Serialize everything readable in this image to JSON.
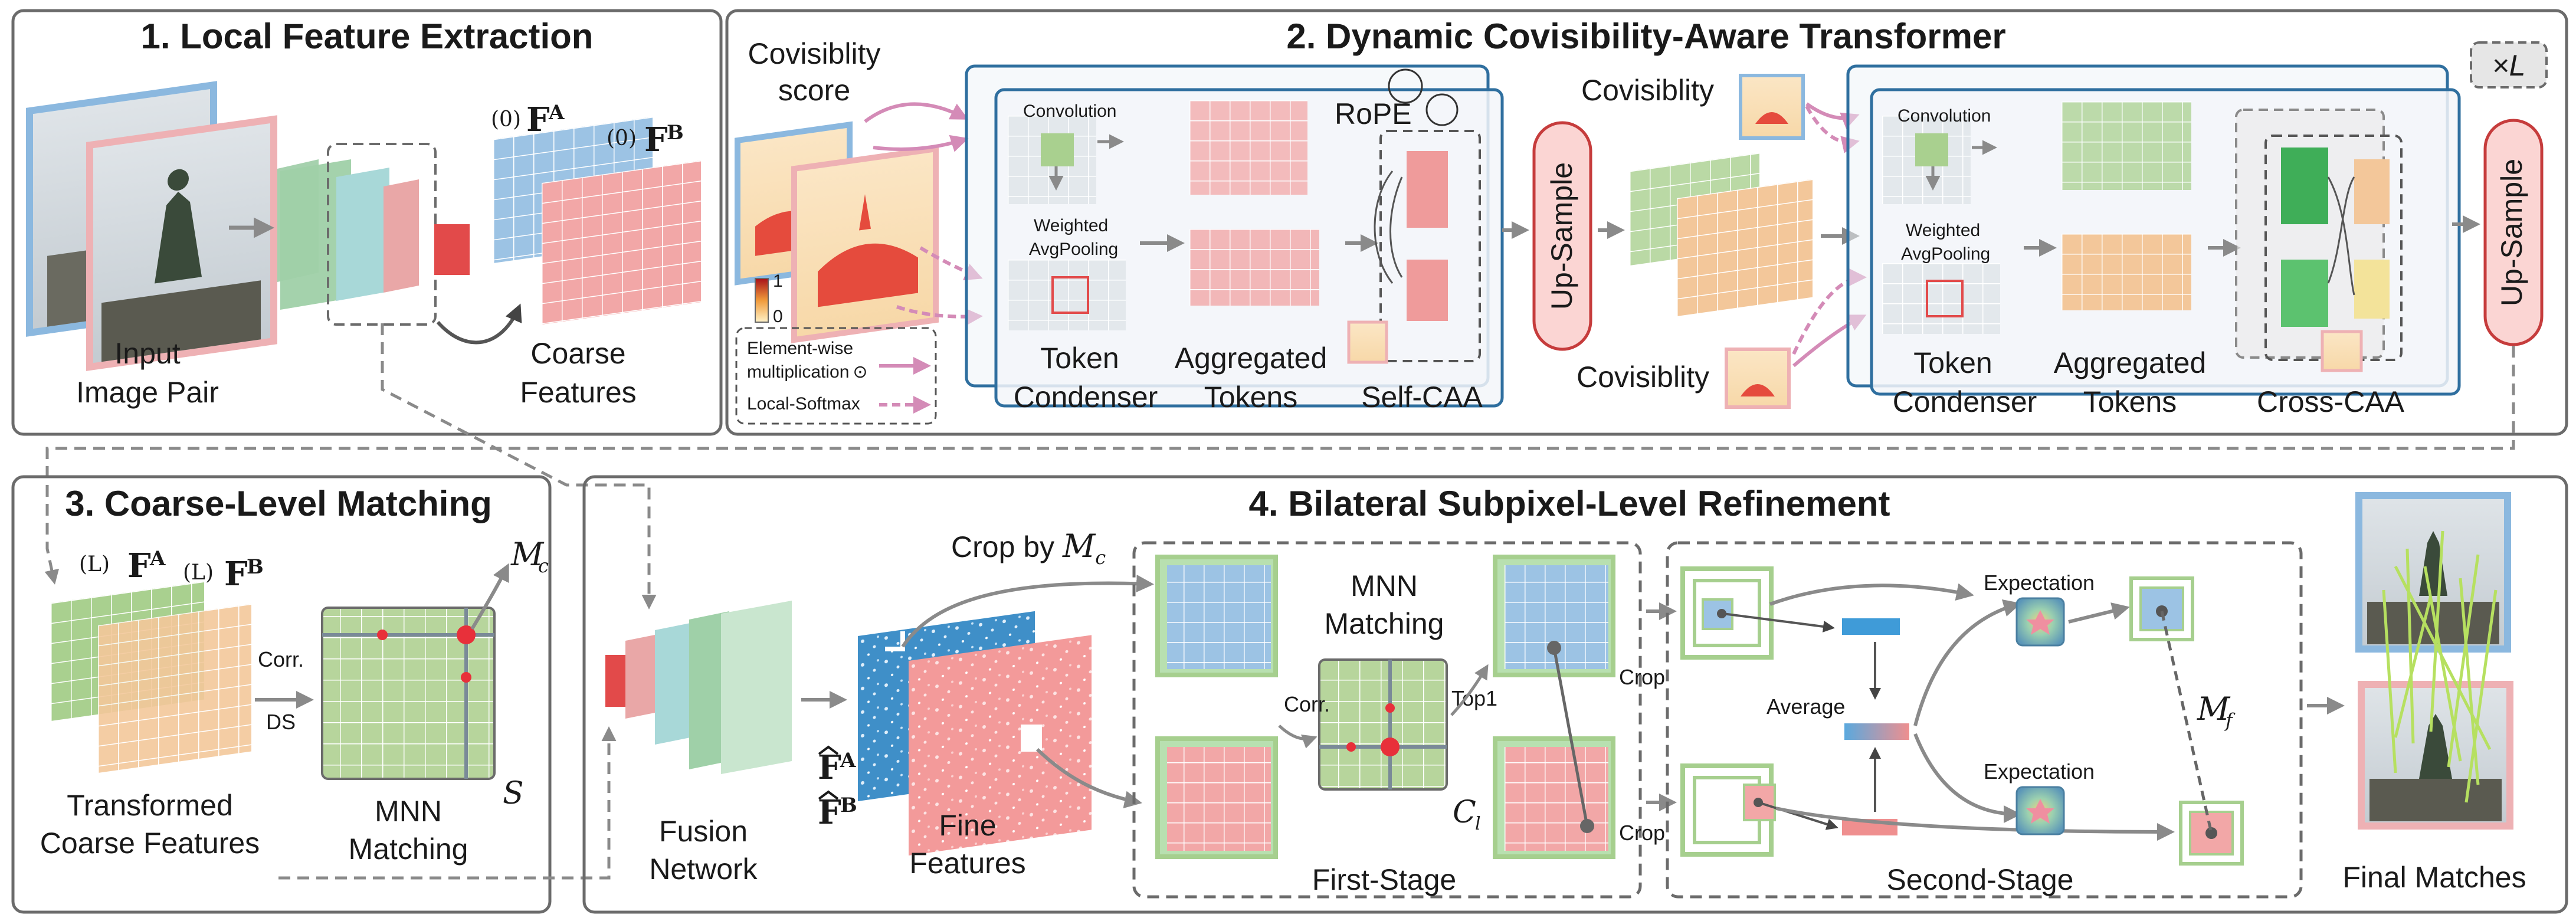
{
  "panels": {
    "p1": {
      "title": "1. Local Feature Extraction",
      "input_label_1": "Input",
      "input_label_2": "Image Pair",
      "coarse_label_1": "Coarse",
      "coarse_label_2": "Features",
      "fa_sup": "(0)",
      "fa": "F",
      "fa_sub": "A",
      "fb_sup": "(0)",
      "fb": "F",
      "fb_sub": "B"
    },
    "p2": {
      "title": "2. Dynamic Covisibility-Aware Transformer",
      "covis_score_1": "Covisiblity",
      "covis_score_2": "score",
      "scale_max": "1",
      "scale_min": "0",
      "legend_elementwise_1": "Element-wise",
      "legend_elementwise_2": "multiplication",
      "legend_odot": "⊙",
      "legend_softmax": "Local-Softmax",
      "convolution": "Convolution",
      "weighted_1": "Weighted",
      "weighted_2": "AvgPooling",
      "rope": "RoPE",
      "token_1": "Token",
      "token_2": "Condenser",
      "agg_1": "Aggregated",
      "agg_2": "Tokens",
      "self_caa": "Self-CAA",
      "upsample": "Up-Sample",
      "covis_top": "Covisiblity",
      "covis_bottom": "Covisiblity",
      "convolution_2": "Convolution",
      "weighted_1b": "Weighted",
      "weighted_2b": "AvgPooling",
      "token_1b": "Token",
      "token_2b": "Condenser",
      "agg_1b": "Aggregated",
      "agg_2b": "Tokens",
      "cross_caa": "Cross-CAA",
      "upsample_2": "Up-Sample",
      "times_l": "×L"
    },
    "p3": {
      "title": "3. Coarse-Level Matching",
      "fa_sup": "(L)",
      "fa": "F",
      "fa_sub": "A",
      "fb_sup": "(L)",
      "fb": "F",
      "fb_sub": "B",
      "mc": "M",
      "mc_sub": "c",
      "corr": "Corr.",
      "ds": "DS",
      "s": "S",
      "transformed_1": "Transformed",
      "transformed_2": "Coarse Features",
      "mnn_1": "MNN",
      "mnn_2": "Matching"
    },
    "p4": {
      "title": "4. Bilateral Subpixel-Level Refinement",
      "fusion_1": "Fusion",
      "fusion_2": "Network",
      "crop_by": "Crop by ",
      "crop_by_m": "M",
      "crop_by_sub": "c",
      "fhat_a": "F",
      "fhat_a_sub": "A",
      "fhat_b": "F",
      "fhat_b_sub": "B",
      "fine_1": "Fine",
      "fine_2": "Features",
      "mnn_1": "MNN",
      "mnn_2": "Matching",
      "corr": "Corr.",
      "top1": "Top1",
      "cl": "C",
      "cl_sub": "l",
      "first_stage": "First-Stage",
      "crop_top": "Crop",
      "crop_bottom": "Crop",
      "expectation_top": "Expectation",
      "expectation_bottom": "Expectation",
      "average": "Average",
      "mf": "M",
      "mf_sub": "f",
      "second_stage": "Second-Stage",
      "final_matches": "Final Matches"
    }
  },
  "colors": {
    "frame": "#6b6b6b",
    "blue_frame": "#2f6f9f",
    "pink_arrow": "#d48bb7",
    "grid_blue": "#8fb8dc",
    "grid_red": "#ef9b9b",
    "grid_green": "#a6cf8e",
    "upsample_fill": "#fbd5d3",
    "upsample_stroke": "#c63c3c"
  }
}
